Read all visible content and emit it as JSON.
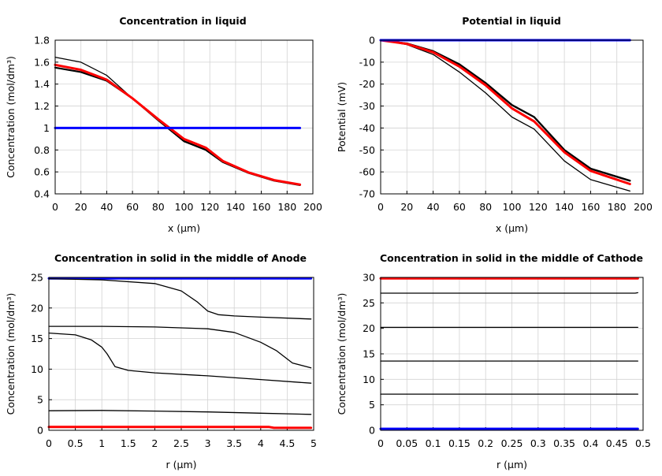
{
  "chart_data": [
    {
      "type": "line",
      "title": "Concentration in liquid",
      "xlabel": "x (µm)",
      "ylabel": "Concentration (mol/dm³)",
      "xlim": [
        0,
        200
      ],
      "ylim": [
        0.4,
        1.8
      ],
      "xticks": [
        0,
        20,
        40,
        60,
        80,
        100,
        120,
        140,
        160,
        180,
        200
      ],
      "yticks": [
        0.4,
        0.6,
        0.8,
        1,
        1.2,
        1.4,
        1.6,
        1.8
      ],
      "grid": true,
      "series": [
        {
          "color": "#000000",
          "width": 1.3,
          "points": [
            [
              0,
              1.645
            ],
            [
              20,
              1.6
            ],
            [
              40,
              1.48
            ],
            [
              60,
              1.27
            ],
            [
              80,
              1.07
            ],
            [
              100,
              0.875
            ],
            [
              117,
              0.8
            ],
            [
              130,
              0.69
            ],
            [
              150,
              0.59
            ],
            [
              170,
              0.52
            ],
            [
              190,
              0.48
            ]
          ]
        },
        {
          "color": "#000000",
          "width": 2.2,
          "points": [
            [
              0,
              1.55
            ],
            [
              20,
              1.51
            ],
            [
              40,
              1.43
            ],
            [
              60,
              1.27
            ],
            [
              80,
              1.07
            ],
            [
              100,
              0.88
            ],
            [
              117,
              0.8
            ],
            [
              130,
              0.69
            ],
            [
              150,
              0.59
            ],
            [
              170,
              0.52
            ],
            [
              190,
              0.48
            ]
          ]
        },
        {
          "color": "#ff0000",
          "width": 3,
          "points": [
            [
              0,
              1.575
            ],
            [
              20,
              1.53
            ],
            [
              40,
              1.44
            ],
            [
              60,
              1.27
            ],
            [
              80,
              1.08
            ],
            [
              100,
              0.9
            ],
            [
              117,
              0.82
            ],
            [
              130,
              0.7
            ],
            [
              150,
              0.595
            ],
            [
              170,
              0.525
            ],
            [
              190,
              0.485
            ]
          ]
        },
        {
          "color": "#0000ff",
          "width": 3,
          "points": [
            [
              0,
              1
            ],
            [
              190,
              1
            ]
          ]
        }
      ]
    },
    {
      "type": "line",
      "title": "Potential in liquid",
      "xlabel": "x (µm)",
      "ylabel": "Potential (mV)",
      "xlim": [
        0,
        200
      ],
      "ylim": [
        -70,
        0
      ],
      "xticks": [
        0,
        20,
        40,
        60,
        80,
        100,
        120,
        140,
        160,
        180,
        200
      ],
      "yticks": [
        -70,
        -60,
        -50,
        -40,
        -30,
        -20,
        -10,
        0
      ],
      "grid": true,
      "series": [
        {
          "color": "#000000",
          "width": 1.3,
          "points": [
            [
              0,
              0
            ],
            [
              20,
              -2
            ],
            [
              40,
              -6.5
            ],
            [
              60,
              -14.5
            ],
            [
              80,
              -24
            ],
            [
              100,
              -35
            ],
            [
              117,
              -40.5
            ],
            [
              140,
              -55
            ],
            [
              160,
              -63.5
            ],
            [
              190,
              -68.7
            ]
          ]
        },
        {
          "color": "#000000",
          "width": 2.4,
          "points": [
            [
              0,
              0
            ],
            [
              20,
              -1.5
            ],
            [
              40,
              -5
            ],
            [
              60,
              -11
            ],
            [
              80,
              -19.5
            ],
            [
              100,
              -29.5
            ],
            [
              117,
              -35
            ],
            [
              140,
              -50
            ],
            [
              160,
              -58.5
            ],
            [
              190,
              -64
            ]
          ]
        },
        {
          "color": "#ff0000",
          "width": 3,
          "points": [
            [
              0,
              0
            ],
            [
              20,
              -1.7
            ],
            [
              40,
              -5.5
            ],
            [
              60,
              -12
            ],
            [
              80,
              -20.5
            ],
            [
              100,
              -31
            ],
            [
              117,
              -37
            ],
            [
              140,
              -51
            ],
            [
              160,
              -59.5
            ],
            [
              190,
              -65.5
            ]
          ]
        },
        {
          "color": "#0000ff",
          "width": 3,
          "points": [
            [
              0,
              0
            ],
            [
              190,
              0
            ]
          ]
        }
      ]
    },
    {
      "type": "line",
      "title": "Concentration in solid in the middle of Anode",
      "xlabel": "r (µm)",
      "ylabel": "Concentration (mol/dm³)",
      "xlim": [
        0,
        5
      ],
      "ylim": [
        0,
        25
      ],
      "xticks": [
        0,
        0.5,
        1,
        1.5,
        2,
        2.5,
        3,
        3.5,
        4,
        4.5,
        5
      ],
      "yticks": [
        0,
        5,
        10,
        15,
        20,
        25
      ],
      "grid": true,
      "series": [
        {
          "color": "#0000ff",
          "width": 3,
          "points": [
            [
              0,
              24.85
            ],
            [
              4.95,
              24.85
            ]
          ]
        },
        {
          "color": "#000000",
          "width": 1.3,
          "points": [
            [
              0,
              24.8
            ],
            [
              1,
              24.6
            ],
            [
              2,
              24
            ],
            [
              2.5,
              22.8
            ],
            [
              2.8,
              21
            ],
            [
              3,
              19.5
            ],
            [
              3.2,
              18.9
            ],
            [
              3.5,
              18.7
            ],
            [
              4,
              18.5
            ],
            [
              4.95,
              18.2
            ]
          ]
        },
        {
          "color": "#000000",
          "width": 1.3,
          "points": [
            [
              0,
              17
            ],
            [
              1,
              17
            ],
            [
              2,
              16.9
            ],
            [
              3,
              16.6
            ],
            [
              3.5,
              16
            ],
            [
              4,
              14.4
            ],
            [
              4.3,
              13
            ],
            [
              4.6,
              11
            ],
            [
              4.95,
              10.2
            ]
          ]
        },
        {
          "color": "#000000",
          "width": 1.3,
          "points": [
            [
              0,
              15.9
            ],
            [
              0.5,
              15.6
            ],
            [
              0.8,
              14.8
            ],
            [
              1,
              13.6
            ],
            [
              1.1,
              12.5
            ],
            [
              1.25,
              10.4
            ],
            [
              1.5,
              9.8
            ],
            [
              2,
              9.4
            ],
            [
              3,
              8.9
            ],
            [
              4,
              8.3
            ],
            [
              4.95,
              7.7
            ]
          ]
        },
        {
          "color": "#000000",
          "width": 1.3,
          "points": [
            [
              0,
              3.2
            ],
            [
              1,
              3.25
            ],
            [
              2,
              3.15
            ],
            [
              3,
              3.0
            ],
            [
              4,
              2.8
            ],
            [
              4.95,
              2.6
            ]
          ]
        },
        {
          "color": "#ff0000",
          "width": 3,
          "points": [
            [
              0,
              0.55
            ],
            [
              4.15,
              0.55
            ],
            [
              4.25,
              0.4
            ],
            [
              4.95,
              0.4
            ]
          ]
        }
      ]
    },
    {
      "type": "line",
      "title": "Concentration in solid in the middle of Cathode",
      "xlabel": "r (µm)",
      "ylabel": "Concentration (mol/dm³)",
      "xlim": [
        0,
        0.5
      ],
      "ylim": [
        0,
        30
      ],
      "xticks": [
        0,
        0.05,
        0.1,
        0.15,
        0.2,
        0.25,
        0.3,
        0.35,
        0.4,
        0.45,
        0.5
      ],
      "yticks": [
        0,
        5,
        10,
        15,
        20,
        25,
        30
      ],
      "grid": true,
      "series": [
        {
          "color": "#ff0000",
          "width": 3,
          "points": [
            [
              0,
              29.8
            ],
            [
              0.49,
              29.8
            ]
          ]
        },
        {
          "color": "#000000",
          "width": 1.3,
          "points": [
            [
              0,
              26.9
            ],
            [
              0.485,
              26.9
            ],
            [
              0.49,
              27.0
            ]
          ]
        },
        {
          "color": "#000000",
          "width": 1.3,
          "points": [
            [
              0,
              20.2
            ],
            [
              0.49,
              20.2
            ]
          ]
        },
        {
          "color": "#000000",
          "width": 1.3,
          "points": [
            [
              0,
              13.6
            ],
            [
              0.49,
              13.6
            ]
          ]
        },
        {
          "color": "#000000",
          "width": 1.3,
          "points": [
            [
              0,
              7.1
            ],
            [
              0.49,
              7.1
            ]
          ]
        },
        {
          "color": "#0000ff",
          "width": 3,
          "points": [
            [
              0,
              0.3
            ],
            [
              0.49,
              0.3
            ]
          ]
        }
      ]
    }
  ]
}
